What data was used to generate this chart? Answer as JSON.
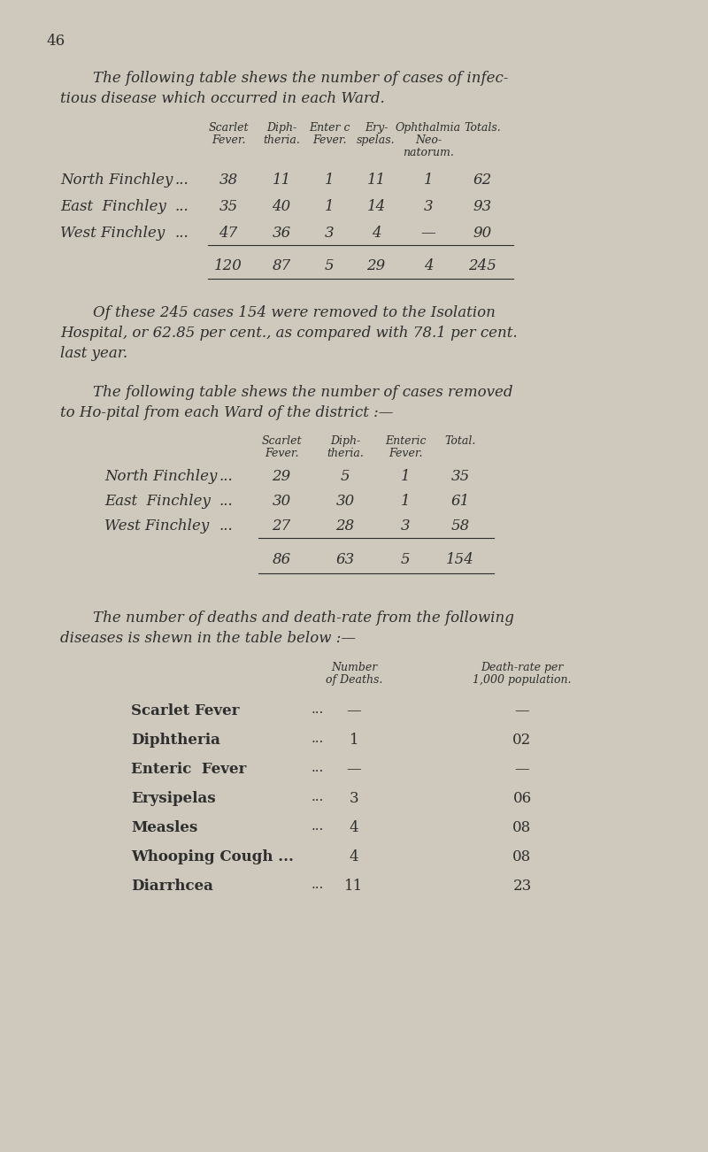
{
  "bg_color": "#cec9bc",
  "text_color": "#2e2e2e",
  "page_number": "46",
  "para1_line1": "The following table shews the number of cases of infec-",
  "para1_line2": "tious disease which occurred in each Ward.",
  "table1_col1_header": [
    "Scarlet",
    "Fever."
  ],
  "table1_col2_header": [
    "Diph-",
    "theria."
  ],
  "table1_col3_header": [
    "Enter c",
    "Fever."
  ],
  "table1_col4_header": [
    "Ery-",
    "spelas."
  ],
  "table1_col5_header": [
    "Ophthalmia",
    "Neo-",
    "natorum."
  ],
  "table1_col6_header": [
    "Totals."
  ],
  "table1_rows": [
    [
      "North Finchley",
      "...",
      "38",
      "11",
      "1",
      "11",
      "1",
      "62"
    ],
    [
      "East  Finchley",
      "...",
      "35",
      "40",
      "1",
      "14",
      "3",
      "93"
    ],
    [
      "West Finchley",
      "...",
      "47",
      "36",
      "3",
      "4",
      "—",
      "90"
    ]
  ],
  "table1_totals": [
    "120",
    "87",
    "5",
    "29",
    "4",
    "245"
  ],
  "para2_line1": "Of these 245 cases 154 were removed to the Isolation",
  "para2_line2": "Hospital, or 62.85 per cent., as compared with 78.1 per cent.",
  "para2_line3": "last year.",
  "para3_line1": "The following table shews the number of cases removed",
  "para3_line2": "to Ho­pital from each Ward of the district :—",
  "table2_col1_header": [
    "Scarlet",
    "Fever."
  ],
  "table2_col2_header": [
    "Diph-",
    "theria."
  ],
  "table2_col3_header": [
    "Enteric",
    "Fever."
  ],
  "table2_col4_header": [
    "Total."
  ],
  "table2_rows": [
    [
      "North Finchley",
      "...",
      "29",
      "5",
      "1",
      "35"
    ],
    [
      "East  Finchley",
      "...",
      "30",
      "30",
      "1",
      "61"
    ],
    [
      "West Finchley",
      "...",
      "27",
      "28",
      "3",
      "58"
    ]
  ],
  "table2_totals": [
    "86",
    "63",
    "5",
    "154"
  ],
  "para4_line1": "The number of deaths and death-rate from the following",
  "para4_line2": "diseases is shewn in the table below :—",
  "table3_col1_header": [
    "Number",
    "of Deaths."
  ],
  "table3_col2_header": [
    "Death-rate per",
    "1,000 population."
  ],
  "table3_rows": [
    [
      "Scarlet Fever",
      "...",
      "—",
      "—"
    ],
    [
      "Diphtheria",
      "...",
      "1",
      "02"
    ],
    [
      "Enteric  Fever",
      "...",
      "—",
      "—"
    ],
    [
      "Erysipelas",
      "...",
      "3",
      "06"
    ],
    [
      "Measles",
      "...",
      "4",
      "08"
    ],
    [
      "Whooping Cough ...",
      "",
      "4",
      "08"
    ],
    [
      "Diarrhcea",
      "...",
      "11",
      "23"
    ]
  ]
}
